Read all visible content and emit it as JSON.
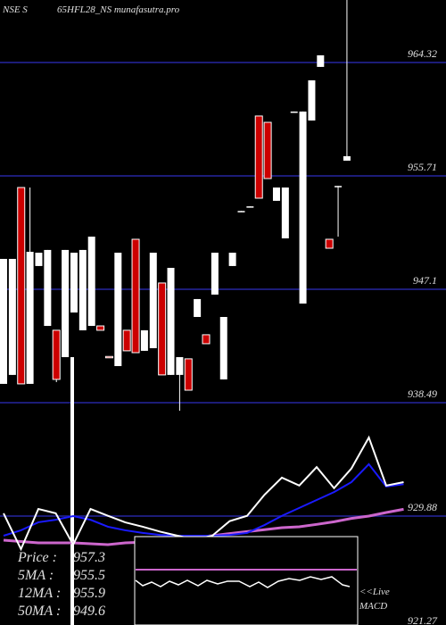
{
  "chart_data": {
    "type": "candlestick",
    "exchange": "NSE S",
    "title": "65HFL28_NS munafasutra.pro",
    "ylim": [
      921.27,
      969.07
    ],
    "yticks": [
      964.32,
      955.71,
      947.1,
      938.49,
      929.88,
      921.27
    ],
    "grid": true,
    "grid_color": "#1c1c78",
    "up_color": "#ffffff",
    "down_color": "#cc0000",
    "ohlc": [
      [
        939.92,
        949.41,
        939.92,
        949.41
      ],
      [
        940.6,
        949.41,
        940.6,
        949.41
      ],
      [
        954.83,
        954.83,
        939.92,
        939.92
      ],
      [
        939.92,
        954.83,
        939.92,
        949.95
      ],
      [
        948.87,
        949.88,
        948.87,
        949.88
      ],
      [
        944.32,
        950.09,
        944.32,
        950.09
      ],
      [
        943.99,
        943.99,
        940.05,
        940.26
      ],
      [
        941.95,
        950.09,
        941.95,
        950.09
      ],
      [
        945.34,
        949.88,
        945.34,
        949.88
      ],
      [
        943.99,
        950.09,
        943.99,
        950.09
      ],
      [
        944.32,
        951.1,
        944.32,
        951.1
      ],
      [
        944.32,
        944.32,
        943.99,
        943.99
      ],
      [
        942.0,
        942.0,
        941.95,
        941.95
      ],
      [
        941.27,
        949.88,
        941.27,
        949.88
      ],
      [
        943.99,
        943.99,
        942.43,
        942.43
      ],
      [
        950.9,
        950.9,
        942.29,
        942.29
      ],
      [
        942.43,
        943.99,
        942.43,
        943.99
      ],
      [
        942.63,
        949.88,
        942.63,
        949.88
      ],
      [
        947.58,
        947.58,
        940.6,
        940.6
      ],
      [
        940.6,
        948.73,
        940.6,
        948.73
      ],
      [
        940.6,
        941.95,
        937.88,
        941.95
      ],
      [
        941.82,
        941.82,
        939.44,
        939.44
      ],
      [
        945.0,
        946.36,
        945.0,
        946.36
      ],
      [
        943.65,
        943.65,
        942.97,
        942.97
      ],
      [
        946.7,
        949.88,
        946.7,
        949.88
      ],
      [
        940.26,
        945.0,
        940.26,
        945.0
      ],
      [
        948.87,
        949.88,
        948.87,
        949.88
      ],
      [
        953.0,
        953.05,
        953.0,
        953.05
      ],
      [
        953.34,
        953.4,
        953.34,
        953.4
      ],
      [
        960.26,
        960.26,
        954.02,
        954.02
      ],
      [
        959.78,
        959.78,
        955.51,
        955.51
      ],
      [
        953.82,
        954.83,
        953.82,
        954.83
      ],
      [
        950.97,
        954.83,
        950.97,
        954.83
      ],
      [
        960.55,
        960.6,
        960.55,
        960.6
      ],
      [
        946.02,
        960.6,
        946.02,
        960.6
      ],
      [
        959.92,
        962.97,
        959.92,
        962.97
      ],
      [
        963.99,
        964.87,
        963.99,
        964.87
      ],
      [
        950.9,
        950.9,
        950.22,
        950.22
      ],
      [
        954.9,
        954.95,
        951.1,
        954.95
      ],
      [
        956.87,
        969.07,
        956.87,
        957.21
      ]
    ],
    "overlays": [
      {
        "color": "#cc66cc",
        "values": [
          928.05,
          927.95,
          927.85,
          927.85,
          927.85,
          927.78,
          927.71,
          927.85,
          927.9,
          927.95,
          928.1,
          928.25,
          928.39,
          928.55,
          928.7,
          928.85,
          929.0,
          929.07,
          929.25,
          929.45,
          929.7,
          929.88,
          930.15,
          930.4
        ]
      },
      {
        "color": "#1a1aff",
        "values": [
          928.39,
          928.8,
          929.41,
          929.6,
          929.88,
          929.6,
          929.07,
          928.8,
          928.6,
          928.45,
          928.39,
          928.39,
          928.39,
          928.45,
          928.6,
          929.2,
          929.9,
          930.5,
          931.1,
          931.7,
          932.46,
          933.82,
          932.12,
          932.3
        ]
      },
      {
        "color": "#ffffff",
        "values": [
          930.09,
          927.37,
          930.42,
          930.09,
          927.71,
          930.42,
          929.9,
          929.4,
          929.07,
          928.7,
          928.39,
          928.1,
          928.39,
          929.5,
          929.9,
          931.5,
          932.8,
          932.2,
          933.6,
          932.0,
          933.5,
          935.85,
          932.2,
          932.46
        ]
      }
    ],
    "stats": [
      {
        "label": "Price :",
        "value": 957.3
      },
      {
        "label": "5MA :",
        "value": 955.5
      },
      {
        "label": "12MA :",
        "value": 955.9
      },
      {
        "label": "50MA :",
        "value": 949.6
      }
    ],
    "macd_label": [
      "<<Live",
      "MACD"
    ]
  }
}
